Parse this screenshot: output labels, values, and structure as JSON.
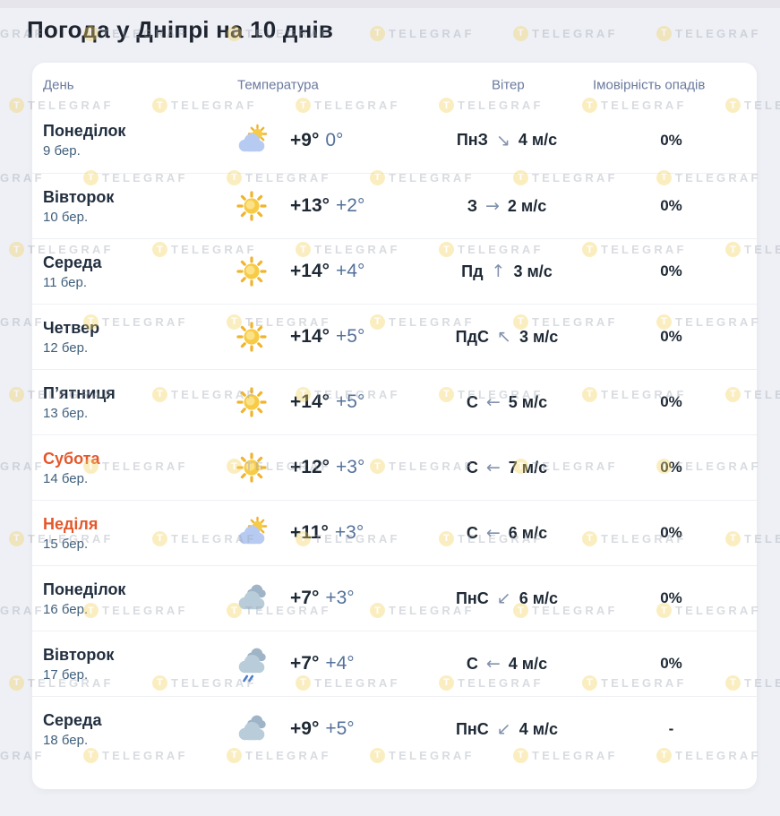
{
  "page": {
    "title": "Погода у Дніпрі на 10 днів"
  },
  "watermark": {
    "initial": "T",
    "text": "TELEGRAF"
  },
  "table": {
    "headers": {
      "day": "День",
      "temperature": "Температура",
      "wind": "Вітер",
      "precipitation": "Імовірність опадів"
    },
    "rows": [
      {
        "day": "Понеділок",
        "date": "9 бер.",
        "icon": "sun-behind-cloud",
        "temp_high": "+9°",
        "temp_low": "0°",
        "wind_dir": "ПнЗ",
        "wind_arrow": "↘",
        "wind_speed": "4 м/с",
        "precip": "0%",
        "weekend": false
      },
      {
        "day": "Вівторок",
        "date": "10 бер.",
        "icon": "sun",
        "temp_high": "+13°",
        "temp_low": "+2°",
        "wind_dir": "З",
        "wind_arrow": "→",
        "wind_speed": "2 м/с",
        "precip": "0%",
        "weekend": false
      },
      {
        "day": "Середа",
        "date": "11 бер.",
        "icon": "sun",
        "temp_high": "+14°",
        "temp_low": "+4°",
        "wind_dir": "Пд",
        "wind_arrow": "↑",
        "wind_speed": "3 м/с",
        "precip": "0%",
        "weekend": false
      },
      {
        "day": "Четвер",
        "date": "12 бер.",
        "icon": "sun",
        "temp_high": "+14°",
        "temp_low": "+5°",
        "wind_dir": "ПдС",
        "wind_arrow": "↖",
        "wind_speed": "3 м/с",
        "precip": "0%",
        "weekend": false
      },
      {
        "day": "П’ятниця",
        "date": "13 бер.",
        "icon": "sun",
        "temp_high": "+14°",
        "temp_low": "+5°",
        "wind_dir": "С",
        "wind_arrow": "←",
        "wind_speed": "5 м/с",
        "precip": "0%",
        "weekend": false
      },
      {
        "day": "Субота",
        "date": "14 бер.",
        "icon": "sun",
        "temp_high": "+12°",
        "temp_low": "+3°",
        "wind_dir": "С",
        "wind_arrow": "←",
        "wind_speed": "7 м/с",
        "precip": "0%",
        "weekend": true
      },
      {
        "day": "Неділя",
        "date": "15 бер.",
        "icon": "sun-behind-cloud",
        "temp_high": "+11°",
        "temp_low": "+3°",
        "wind_dir": "С",
        "wind_arrow": "←",
        "wind_speed": "6 м/с",
        "precip": "0%",
        "weekend": true
      },
      {
        "day": "Понеділок",
        "date": "16 бер.",
        "icon": "clouds",
        "temp_high": "+7°",
        "temp_low": "+3°",
        "wind_dir": "ПнС",
        "wind_arrow": "↙",
        "wind_speed": "6 м/с",
        "precip": "0%",
        "weekend": false
      },
      {
        "day": "Вівторок",
        "date": "17 бер.",
        "icon": "rain",
        "temp_high": "+7°",
        "temp_low": "+4°",
        "wind_dir": "С",
        "wind_arrow": "←",
        "wind_speed": "4 м/с",
        "precip": "0%",
        "weekend": false
      },
      {
        "day": "Середа",
        "date": "18 бер.",
        "icon": "clouds",
        "temp_high": "+9°",
        "temp_low": "+5°",
        "wind_dir": "ПнС",
        "wind_arrow": "↙",
        "wind_speed": "4 м/с",
        "precip": "-",
        "weekend": false
      }
    ]
  },
  "colors": {
    "weekend_accent": "#e4572b",
    "temp_high_text": "#1e2935",
    "temp_low_text": "#54719a",
    "header_text": "#6a7a9e",
    "day_date_text": "#40607c",
    "wind_arrow": "#8191ae",
    "sun_yellow": "#f7cb45",
    "sun_ray": "#f0b42c",
    "cloud_blue": "#b7cbf2",
    "cloud_gray_front": "#b9ccd9",
    "cloud_gray_back": "#9fb4c6",
    "rain_blue": "#4e7ec9",
    "watermark_yellow": "#f3d35e",
    "card_background": "#ffffff",
    "page_background": "#eef0f5"
  }
}
